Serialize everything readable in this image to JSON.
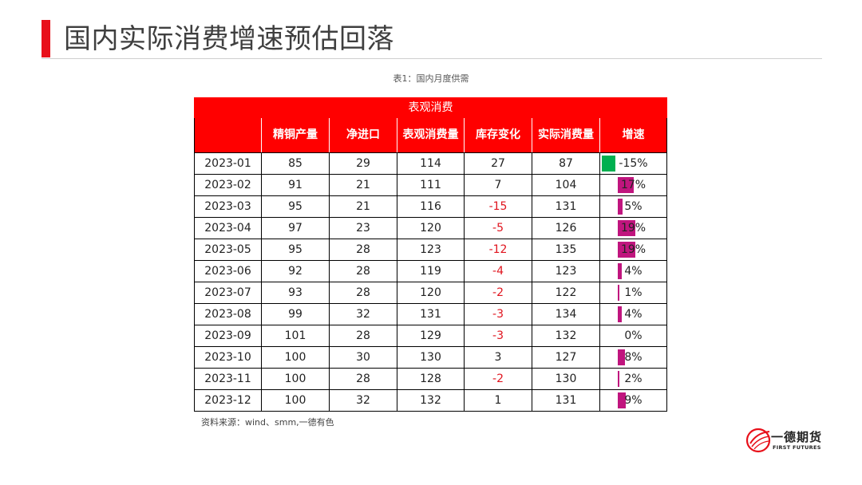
{
  "page": {
    "title": "国内实际消费增速预估回落",
    "caption": "表1：国内月度供需",
    "source": "资料来源：wind、smm,一德有色"
  },
  "table": {
    "group_header": "表观消费",
    "headers": [
      "",
      "精铜产量",
      "净进口",
      "表观消费量",
      "库存变化",
      "实际消费量",
      "增速"
    ],
    "rows": [
      {
        "month": "2023-01",
        "production": "85",
        "net_import": "29",
        "apparent": "114",
        "inventory_change": "27",
        "actual": "87",
        "growth": "-15%",
        "growth_value": -15
      },
      {
        "month": "2023-02",
        "production": "91",
        "net_import": "21",
        "apparent": "111",
        "inventory_change": "7",
        "actual": "104",
        "growth": "17%",
        "growth_value": 17
      },
      {
        "month": "2023-03",
        "production": "95",
        "net_import": "21",
        "apparent": "116",
        "inventory_change": "-15",
        "actual": "131",
        "growth": "5%",
        "growth_value": 5
      },
      {
        "month": "2023-04",
        "production": "97",
        "net_import": "23",
        "apparent": "120",
        "inventory_change": "-5",
        "actual": "126",
        "growth": "19%",
        "growth_value": 19
      },
      {
        "month": "2023-05",
        "production": "95",
        "net_import": "28",
        "apparent": "123",
        "inventory_change": "-12",
        "actual": "135",
        "growth": "19%",
        "growth_value": 19
      },
      {
        "month": "2023-06",
        "production": "92",
        "net_import": "28",
        "apparent": "119",
        "inventory_change": "-4",
        "actual": "123",
        "growth": "4%",
        "growth_value": 4
      },
      {
        "month": "2023-07",
        "production": "93",
        "net_import": "28",
        "apparent": "120",
        "inventory_change": "-2",
        "actual": "122",
        "growth": "1%",
        "growth_value": 1
      },
      {
        "month": "2023-08",
        "production": "99",
        "net_import": "32",
        "apparent": "131",
        "inventory_change": "-3",
        "actual": "134",
        "growth": "4%",
        "growth_value": 4
      },
      {
        "month": "2023-09",
        "production": "101",
        "net_import": "28",
        "apparent": "129",
        "inventory_change": "-3",
        "actual": "132",
        "growth": "0%",
        "growth_value": 0
      },
      {
        "month": "2023-10",
        "production": "100",
        "net_import": "30",
        "apparent": "130",
        "inventory_change": "3",
        "actual": "127",
        "growth": "8%",
        "growth_value": 8
      },
      {
        "month": "2023-11",
        "production": "100",
        "net_import": "28",
        "apparent": "128",
        "inventory_change": "-2",
        "actual": "130",
        "growth": "2%",
        "growth_value": 2
      },
      {
        "month": "2023-12",
        "production": "100",
        "net_import": "32",
        "apparent": "132",
        "inventory_change": "1",
        "actual": "131",
        "growth": "9%",
        "growth_value": 9
      }
    ]
  },
  "colors": {
    "accent": "#e8101a",
    "header_bg": "#ff0000",
    "negative_text": "#e0141e",
    "positive_bar": "#c0157e",
    "negative_bar": "#00b050"
  },
  "logo": {
    "name_cn": "一德期货",
    "name_en": "FIRST FUTURES"
  }
}
